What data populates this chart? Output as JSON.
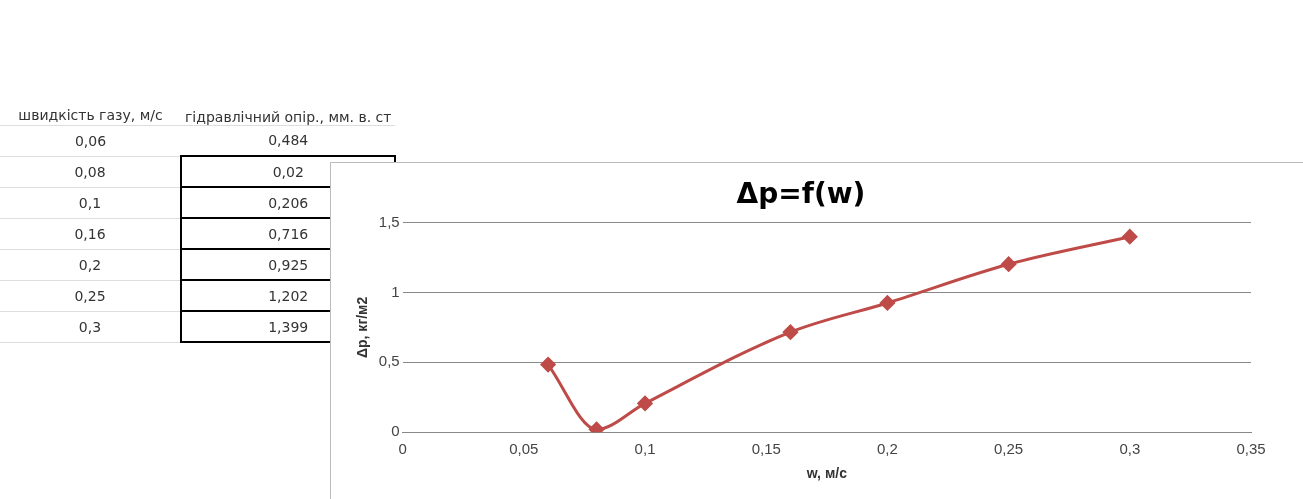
{
  "chart_data": {
    "type": "line",
    "title": "Δp=f(w)",
    "xlabel": "w, м/с",
    "ylabel": "Δp, кг/м2",
    "annotations": [
      "швидкість газу, м/с",
      "гідравлічний опір., мм. в. ст",
      "0,06",
      "0,484",
      "0,08",
      "0,02",
      "0,1",
      "0,206",
      "0,16",
      "0,716",
      "0,2",
      "0,925",
      "0,25",
      "1,202",
      "0,3",
      "1,399"
    ],
    "x": [
      0.06,
      0.08,
      0.1,
      0.16,
      0.2,
      0.25,
      0.3
    ],
    "series": [
      {
        "color": "#be4b48",
        "values": [
          0.484,
          0.02,
          0.206,
          0.716,
          0.925,
          1.202,
          1.399
        ]
      }
    ],
    "xlim": [
      0,
      0.35
    ],
    "xticks": [
      0,
      {
        "value": 0.05,
        "label": "0,05"
      },
      {
        "value": 0.1,
        "label": "0,1"
      },
      {
        "value": 0.15,
        "label": "0,15"
      },
      {
        "value": 0.2,
        "label": "0,2"
      },
      {
        "value": 0.25,
        "label": "0,25"
      },
      {
        "value": 0.3,
        "label": "0,3"
      },
      {
        "value": 0.35,
        "label": "0,35"
      }
    ],
    "ylim": [
      0,
      1.5
    ],
    "yticks": [
      0,
      {
        "value": 0.5,
        "label": "0,5"
      },
      1,
      {
        "value": 1.5,
        "label": "1,5"
      }
    ],
    "grid": "y",
    "legend": false,
    "marker": "diamond",
    "line_style": "solid"
  }
}
